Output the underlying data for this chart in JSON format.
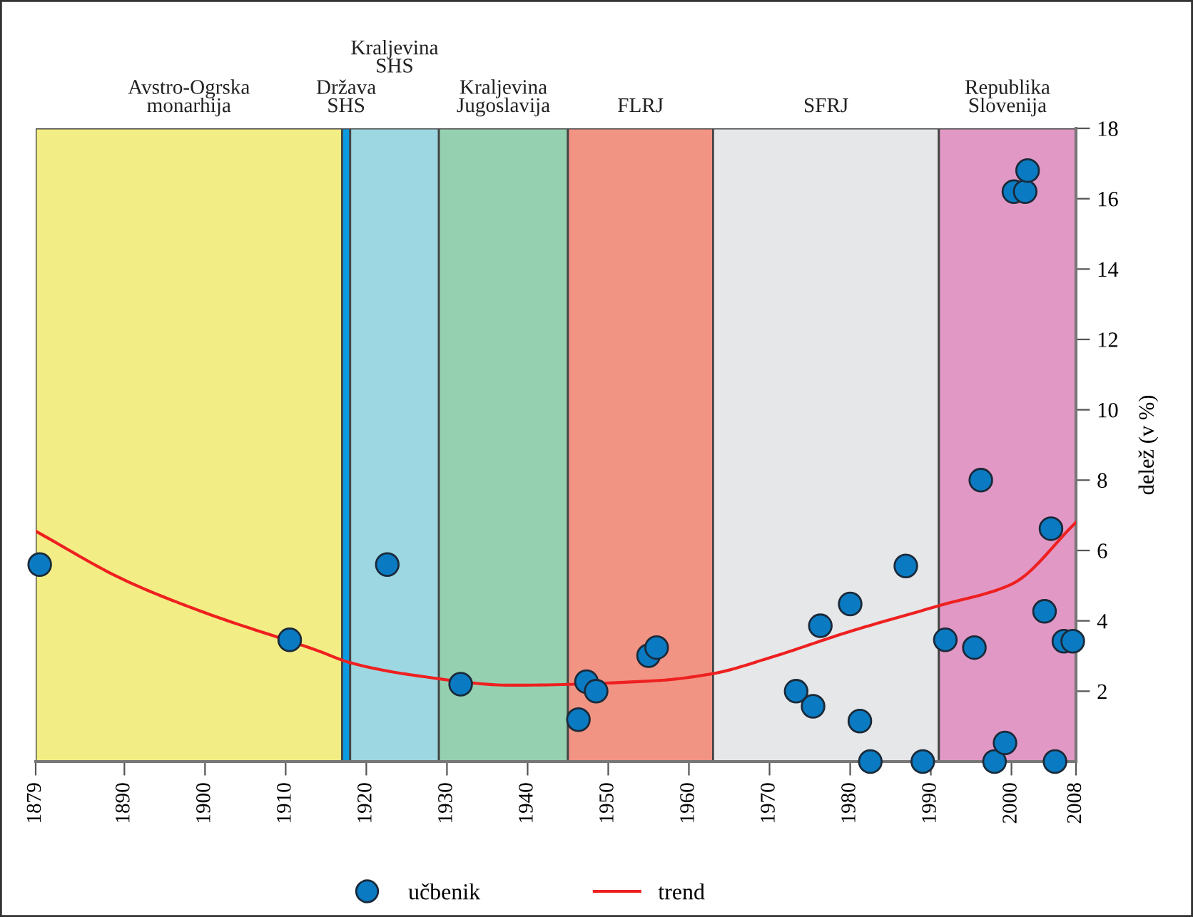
{
  "chart_data": {
    "type": "scatter",
    "ylabel": "delež (v %)",
    "xlim": [
      1879,
      2008
    ],
    "ylim": [
      0,
      18
    ],
    "xticks": [
      1879,
      1890,
      1900,
      1910,
      1920,
      1930,
      1940,
      1950,
      1960,
      1970,
      1980,
      1990,
      2000,
      2008
    ],
    "yticks": [
      2,
      4,
      6,
      8,
      10,
      12,
      14,
      16,
      18
    ],
    "grid": false,
    "legend": "bottom",
    "marker": "circle",
    "bands": [
      {
        "axis": "x",
        "from": 1879,
        "to": 1917,
        "label": "Avstro-Ogrska\nmonarhija",
        "color": "#f3ed85"
      },
      {
        "axis": "x",
        "from": 1917,
        "to": 1918,
        "label": "Država\nSHS",
        "color": "#0b9be0"
      },
      {
        "axis": "x",
        "from": 1918,
        "to": 1929,
        "label": "Kraljevina\nSHS",
        "color": "#9dd7e1"
      },
      {
        "axis": "x",
        "from": 1929,
        "to": 1945,
        "label": "Kraljevina\nJugoslavija",
        "color": "#95d1b0"
      },
      {
        "axis": "x",
        "from": 1945,
        "to": 1963,
        "label": "FLRJ",
        "color": "#f29484"
      },
      {
        "axis": "x",
        "from": 1963,
        "to": 1991,
        "label": "SFRJ",
        "color": "#e6e7e9"
      },
      {
        "axis": "x",
        "from": 1991,
        "to": 2008,
        "label": "Republika\nSlovenija",
        "color": "#e298c5"
      }
    ],
    "series": [
      {
        "name": "učbenik",
        "color": "#0a7bc2",
        "x": [
          1879.5,
          1910.5,
          1922.6,
          1931.7,
          1946.3,
          1947.3,
          1948.5,
          1955,
          1956,
          1973.3,
          1975.4,
          1976.3,
          1980,
          1981.2,
          1982.5,
          1986.9,
          1989,
          1991.8,
          1995.4,
          1996.2,
          1997.9,
          1999.2,
          2000.3,
          2001.7,
          2002,
          2004.1,
          2004.9,
          2005.4,
          2006.5,
          2007.6
        ],
        "values": [
          5.6,
          3.46,
          5.6,
          2.2,
          1.19,
          2.27,
          2.0,
          3.01,
          3.24,
          2.0,
          1.57,
          3.86,
          4.48,
          1.15,
          0,
          5.56,
          0,
          3.46,
          3.24,
          8.0,
          0,
          0.53,
          16.2,
          16.2,
          16.8,
          4.27,
          6.62,
          0,
          3.42,
          3.42
        ]
      },
      {
        "name": "trend",
        "type": "line",
        "color": "#ee2020",
        "marker": "none",
        "line_style": "solid",
        "x": [
          1879,
          1890,
          1900,
          1914,
          1918,
          1926,
          1938,
          1956,
          1963,
          1970,
          1980,
          1991,
          2000,
          2008
        ],
        "values": [
          6.55,
          5.16,
          4.23,
          3.15,
          2.81,
          2.45,
          2.17,
          2.3,
          2.5,
          2.95,
          3.7,
          4.43,
          5.04,
          6.8
        ]
      }
    ]
  }
}
